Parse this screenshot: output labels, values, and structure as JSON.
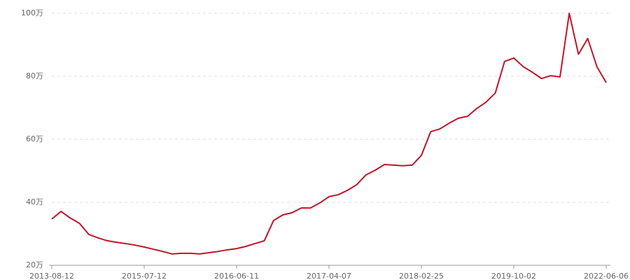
{
  "chart_data": {
    "type": "line",
    "categories": [
      "2013-08-12",
      null,
      null,
      null,
      null,
      null,
      null,
      null,
      null,
      null,
      "2015-07-12",
      null,
      null,
      null,
      null,
      null,
      null,
      null,
      null,
      null,
      "2016-06-11",
      null,
      null,
      null,
      null,
      null,
      null,
      null,
      null,
      null,
      "2017-04-07",
      null,
      null,
      null,
      null,
      null,
      null,
      null,
      null,
      null,
      "2018-02-25",
      null,
      null,
      null,
      null,
      null,
      null,
      null,
      null,
      null,
      "2019-10-02",
      null,
      null,
      null,
      null,
      null,
      null,
      null,
      null,
      null,
      "2022-06-06"
    ],
    "series": [
      {
        "color": "#c0142a",
        "values": [
          34.7,
          37.1,
          35,
          33.3,
          29.8,
          28.7,
          27.8,
          27.3,
          26.9,
          26.4,
          25.8,
          25.1,
          24.4,
          23.6,
          23.8,
          23.8,
          23.6,
          24,
          24.4,
          24.9,
          25.3,
          26,
          26.9,
          27.8,
          34.2,
          36,
          36.7,
          38.2,
          38.2,
          39.8,
          41.8,
          42.4,
          43.8,
          45.6,
          48.7,
          50.2,
          52,
          51.8,
          51.6,
          51.8,
          54.9,
          62.4,
          63.3,
          65.1,
          66.7,
          67.3,
          69.8,
          71.8,
          74.7,
          84.7,
          85.8,
          83.1,
          81.3,
          79.3,
          80.2,
          79.8,
          100,
          87,
          92,
          83,
          78
        ]
      }
    ],
    "ylim": [
      20,
      100
    ],
    "yticks": [
      {
        "value": 20,
        "label": "20万"
      },
      {
        "value": 40,
        "label": "40万"
      },
      {
        "value": 60,
        "label": "60万"
      },
      {
        "value": 80,
        "label": "80万"
      },
      {
        "value": 100,
        "label": "100万"
      }
    ],
    "grid": true
  }
}
